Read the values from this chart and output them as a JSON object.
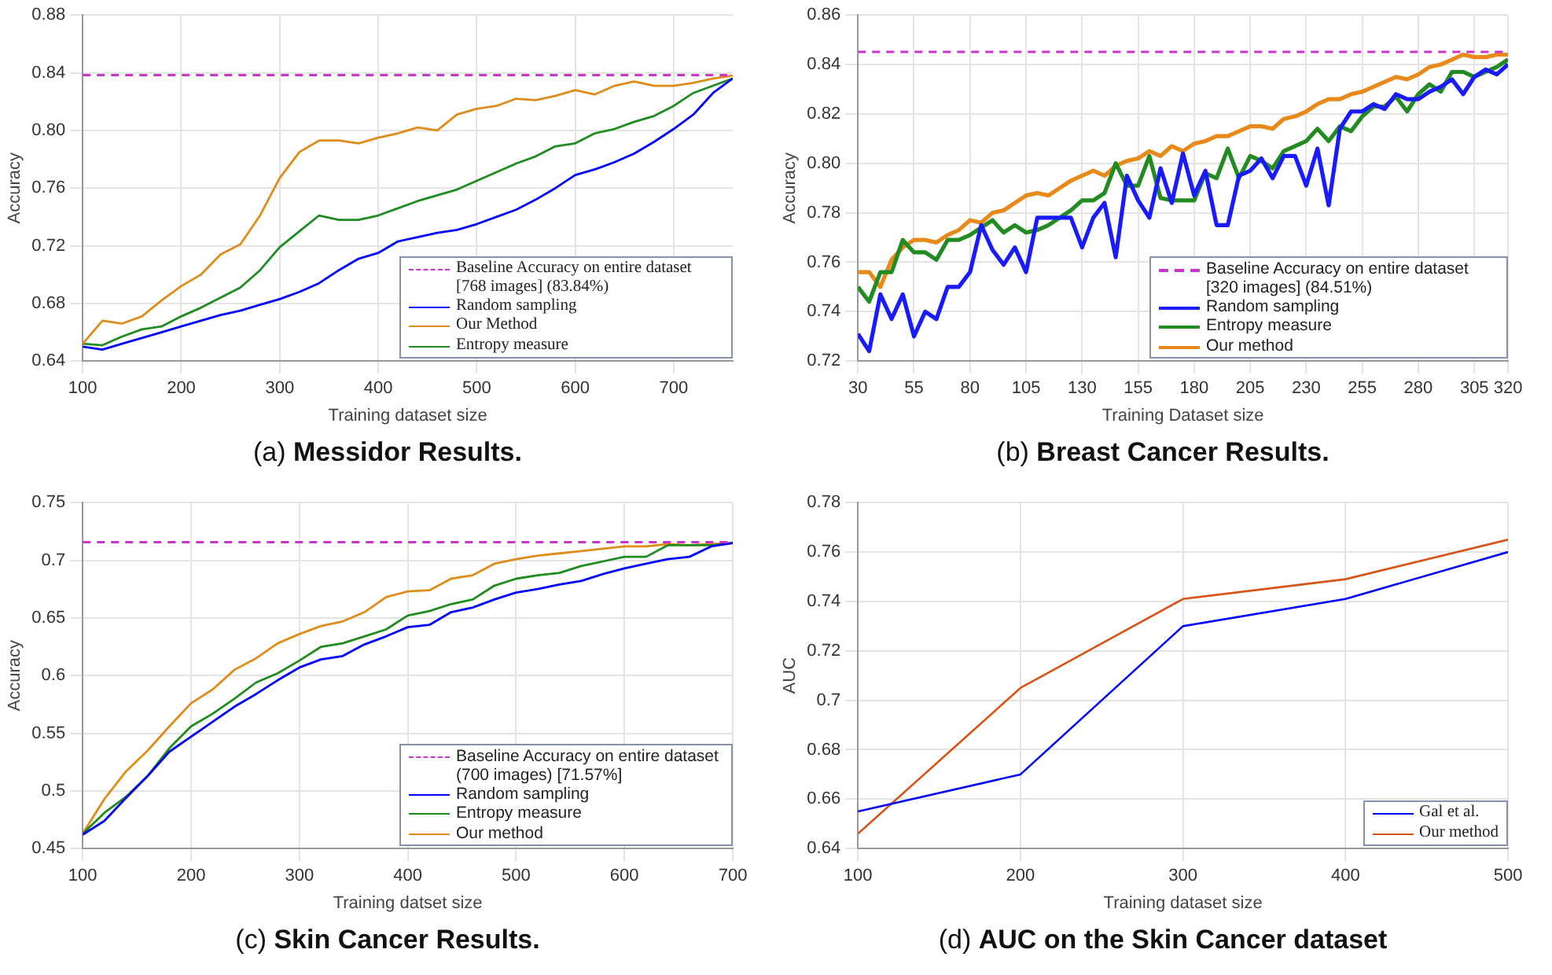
{
  "chart_data": [
    {
      "type": "line",
      "title": "(a) Messidor Results.",
      "xlabel": "Training dataset size",
      "ylabel": "Accuracy",
      "grid": true,
      "legend": "bottom right",
      "xlim": [
        100,
        760
      ],
      "xticks": [
        100,
        200,
        300,
        400,
        500,
        600,
        700
      ],
      "ylim": [
        0.64,
        0.88
      ],
      "yticks": [
        0.64,
        0.68,
        0.72,
        0.76,
        {
          "value": 0.8,
          "label": "0.80"
        },
        0.84,
        0.88
      ],
      "x": [
        100,
        120,
        140,
        160,
        180,
        200,
        220,
        240,
        260,
        280,
        300,
        320,
        340,
        360,
        380,
        400,
        420,
        440,
        460,
        480,
        500,
        520,
        540,
        560,
        580,
        600,
        620,
        640,
        660,
        680,
        700,
        720,
        740,
        760
      ],
      "ref_lines": [
        {
          "axis": "y",
          "value": 0.8384,
          "label": "Baseline Accuracy on entire dataset [768 images] (83.84%)",
          "color": "#cc33cc",
          "line_style": "dashed"
        }
      ],
      "series": [
        {
          "name": "Random sampling",
          "color": "#0000ff",
          "values": [
            0.65,
            0.648,
            0.652,
            0.656,
            0.66,
            0.664,
            0.668,
            0.672,
            0.675,
            0.679,
            0.683,
            0.688,
            0.694,
            0.703,
            0.711,
            0.715,
            0.723,
            0.726,
            0.729,
            0.731,
            0.735,
            0.74,
            0.745,
            0.752,
            0.76,
            0.769,
            0.773,
            0.778,
            0.784,
            0.792,
            0.801,
            0.811,
            0.826,
            0.836
          ]
        },
        {
          "name": "Our Method",
          "color": "#e08c1a",
          "values": [
            0.652,
            0.668,
            0.666,
            0.671,
            0.682,
            0.692,
            0.7,
            0.714,
            0.721,
            0.741,
            0.767,
            0.785,
            0.793,
            0.793,
            0.791,
            0.795,
            0.798,
            0.802,
            0.8,
            0.811,
            0.815,
            0.817,
            0.822,
            0.821,
            0.824,
            0.828,
            0.825,
            0.831,
            0.834,
            0.831,
            0.831,
            0.833,
            0.836,
            0.838
          ]
        },
        {
          "name": "Entropy measure",
          "color": "#1e8c1e",
          "values": [
            0.652,
            0.651,
            0.657,
            0.662,
            0.664,
            0.671,
            0.677,
            0.684,
            0.691,
            0.703,
            0.719,
            0.73,
            0.741,
            0.738,
            0.738,
            0.741,
            0.746,
            0.751,
            0.755,
            0.759,
            0.765,
            0.771,
            0.777,
            0.782,
            0.789,
            0.791,
            0.798,
            0.801,
            0.806,
            0.81,
            0.817,
            0.826,
            0.831,
            0.836
          ]
        }
      ]
    },
    {
      "type": "line",
      "title": "(b) Breast Cancer Results.",
      "xlabel": "Training Dataset size",
      "ylabel": "Accuracy",
      "grid": true,
      "legend": "bottom right",
      "xlim": [
        30,
        320
      ],
      "xticks": [
        30,
        55,
        80,
        105,
        130,
        155,
        180,
        205,
        230,
        255,
        280,
        305,
        320
      ],
      "ylim": [
        0.72,
        0.86
      ],
      "yticks": [
        0.72,
        0.74,
        0.76,
        0.78,
        {
          "value": 0.8,
          "label": "0.80"
        },
        0.82,
        0.84,
        0.86
      ],
      "x": [
        30,
        35,
        40,
        45,
        50,
        55,
        60,
        65,
        70,
        75,
        80,
        85,
        90,
        95,
        100,
        105,
        110,
        115,
        120,
        125,
        130,
        135,
        140,
        145,
        150,
        155,
        160,
        165,
        170,
        175,
        180,
        185,
        190,
        195,
        200,
        205,
        210,
        215,
        220,
        225,
        230,
        235,
        240,
        245,
        250,
        255,
        260,
        265,
        270,
        275,
        280,
        285,
        290,
        295,
        300,
        305,
        310,
        315,
        320
      ],
      "ref_lines": [
        {
          "axis": "y",
          "value": 0.8451,
          "label": "Baseline Accuracy on entire dataset [320 images] (84.51%)",
          "color": "#cc33cc",
          "line_style": "dashed"
        }
      ],
      "series": [
        {
          "name": "Random sampling",
          "color": "#1a1aff",
          "values": [
            0.731,
            0.724,
            0.747,
            0.737,
            0.747,
            0.73,
            0.74,
            0.737,
            0.75,
            0.75,
            0.756,
            0.775,
            0.765,
            0.759,
            0.766,
            0.756,
            0.778,
            0.778,
            0.778,
            0.778,
            0.766,
            0.778,
            0.784,
            0.762,
            0.795,
            0.785,
            0.778,
            0.798,
            0.784,
            0.804,
            0.787,
            0.797,
            0.775,
            0.775,
            0.795,
            0.797,
            0.802,
            0.794,
            0.803,
            0.803,
            0.791,
            0.806,
            0.783,
            0.814,
            0.821,
            0.821,
            0.824,
            0.822,
            0.828,
            0.826,
            0.826,
            0.829,
            0.831,
            0.834,
            0.828,
            0.835,
            0.838,
            0.836,
            0.84
          ]
        },
        {
          "name": "Entropy measure",
          "color": "#228b22",
          "values": [
            0.75,
            0.744,
            0.756,
            0.756,
            0.769,
            0.764,
            0.764,
            0.761,
            0.769,
            0.769,
            0.771,
            0.774,
            0.777,
            0.772,
            0.775,
            0.772,
            0.773,
            0.775,
            0.778,
            0.781,
            0.785,
            0.785,
            0.788,
            0.8,
            0.791,
            0.791,
            0.803,
            0.786,
            0.785,
            0.785,
            0.785,
            0.796,
            0.794,
            0.806,
            0.794,
            0.803,
            0.801,
            0.798,
            0.805,
            0.807,
            0.809,
            0.814,
            0.809,
            0.815,
            0.813,
            0.819,
            0.823,
            0.823,
            0.827,
            0.821,
            0.828,
            0.832,
            0.829,
            0.837,
            0.837,
            0.835,
            0.837,
            0.839,
            0.842
          ]
        },
        {
          "name": "Our method",
          "color": "#e8891a",
          "values": [
            0.756,
            0.756,
            0.75,
            0.761,
            0.766,
            0.769,
            0.769,
            0.768,
            0.771,
            0.773,
            0.777,
            0.776,
            0.78,
            0.781,
            0.784,
            0.787,
            0.788,
            0.787,
            0.79,
            0.793,
            0.795,
            0.797,
            0.795,
            0.799,
            0.801,
            0.802,
            0.805,
            0.803,
            0.807,
            0.805,
            0.808,
            0.809,
            0.811,
            0.811,
            0.813,
            0.815,
            0.815,
            0.814,
            0.818,
            0.819,
            0.821,
            0.824,
            0.826,
            0.826,
            0.828,
            0.829,
            0.831,
            0.833,
            0.835,
            0.834,
            0.836,
            0.839,
            0.84,
            0.842,
            0.844,
            0.843,
            0.843,
            0.844,
            0.844
          ]
        }
      ]
    },
    {
      "type": "line",
      "title": "(c) Skin Cancer Results.",
      "xlabel": "Training datset size",
      "ylabel": "Accuracy",
      "grid": true,
      "legend": "bottom right",
      "xlim": [
        100,
        700
      ],
      "xticks": [
        100,
        200,
        300,
        400,
        500,
        600,
        700
      ],
      "ylim": [
        0.45,
        0.75
      ],
      "yticks": [
        0.45,
        0.5,
        0.55,
        0.6,
        0.65,
        0.7,
        0.75
      ],
      "x": [
        100,
        120,
        140,
        160,
        180,
        200,
        220,
        240,
        260,
        280,
        300,
        320,
        340,
        360,
        380,
        400,
        420,
        440,
        460,
        480,
        500,
        520,
        540,
        560,
        580,
        600,
        620,
        640,
        660,
        680,
        700
      ],
      "ref_lines": [
        {
          "axis": "y",
          "value": 0.7157,
          "label": "Baseline Accuracy on entire dataset (700 images) [71.57%]",
          "color": "#cc33cc",
          "line_style": "dashed"
        }
      ],
      "series": [
        {
          "name": "Random sampling",
          "color": "#0000ff",
          "values": [
            0.462,
            0.474,
            0.494,
            0.513,
            0.534,
            0.547,
            0.56,
            0.573,
            0.584,
            0.596,
            0.607,
            0.614,
            0.617,
            0.627,
            0.634,
            0.642,
            0.644,
            0.655,
            0.659,
            0.666,
            0.672,
            0.675,
            0.679,
            0.682,
            0.688,
            0.693,
            0.697,
            0.701,
            0.703,
            0.712,
            0.715
          ]
        },
        {
          "name": "Entropy measure",
          "color": "#1e8c1e",
          "values": [
            0.463,
            0.481,
            0.495,
            0.513,
            0.537,
            0.556,
            0.567,
            0.58,
            0.594,
            0.602,
            0.613,
            0.625,
            0.628,
            0.634,
            0.64,
            0.652,
            0.656,
            0.662,
            0.666,
            0.678,
            0.684,
            0.687,
            0.689,
            0.695,
            0.699,
            0.703,
            0.703,
            0.713,
            0.713,
            0.713,
            0.715
          ]
        },
        {
          "name": "Our method",
          "color": "#e08c1a",
          "values": [
            0.463,
            0.493,
            0.517,
            0.535,
            0.556,
            0.576,
            0.588,
            0.605,
            0.615,
            0.628,
            0.636,
            0.643,
            0.647,
            0.655,
            0.668,
            0.673,
            0.674,
            0.684,
            0.687,
            0.697,
            0.701,
            0.704,
            0.706,
            0.708,
            0.71,
            0.712,
            0.712,
            0.714,
            0.713,
            0.714,
            0.715
          ]
        }
      ]
    },
    {
      "type": "line",
      "title": "(d) AUC on the Skin Cancer dataset",
      "xlabel": "Training dataset size",
      "ylabel": "AUC",
      "grid": true,
      "legend": "bottom right",
      "xlim": [
        100,
        500
      ],
      "xticks": [
        100,
        200,
        300,
        400,
        500
      ],
      "ylim": [
        0.64,
        0.78
      ],
      "yticks": [
        0.64,
        0.66,
        0.68,
        0.7,
        0.72,
        0.74,
        0.76,
        0.78
      ],
      "x": [
        100,
        200,
        300,
        400,
        500
      ],
      "series": [
        {
          "name": "Gal et al.",
          "color": "#0000ff",
          "values": [
            0.655,
            0.67,
            0.73,
            0.741,
            0.76
          ]
        },
        {
          "name": "Our method",
          "color": "#d95319",
          "values": [
            0.646,
            0.705,
            0.741,
            0.749,
            0.765
          ]
        }
      ]
    }
  ]
}
